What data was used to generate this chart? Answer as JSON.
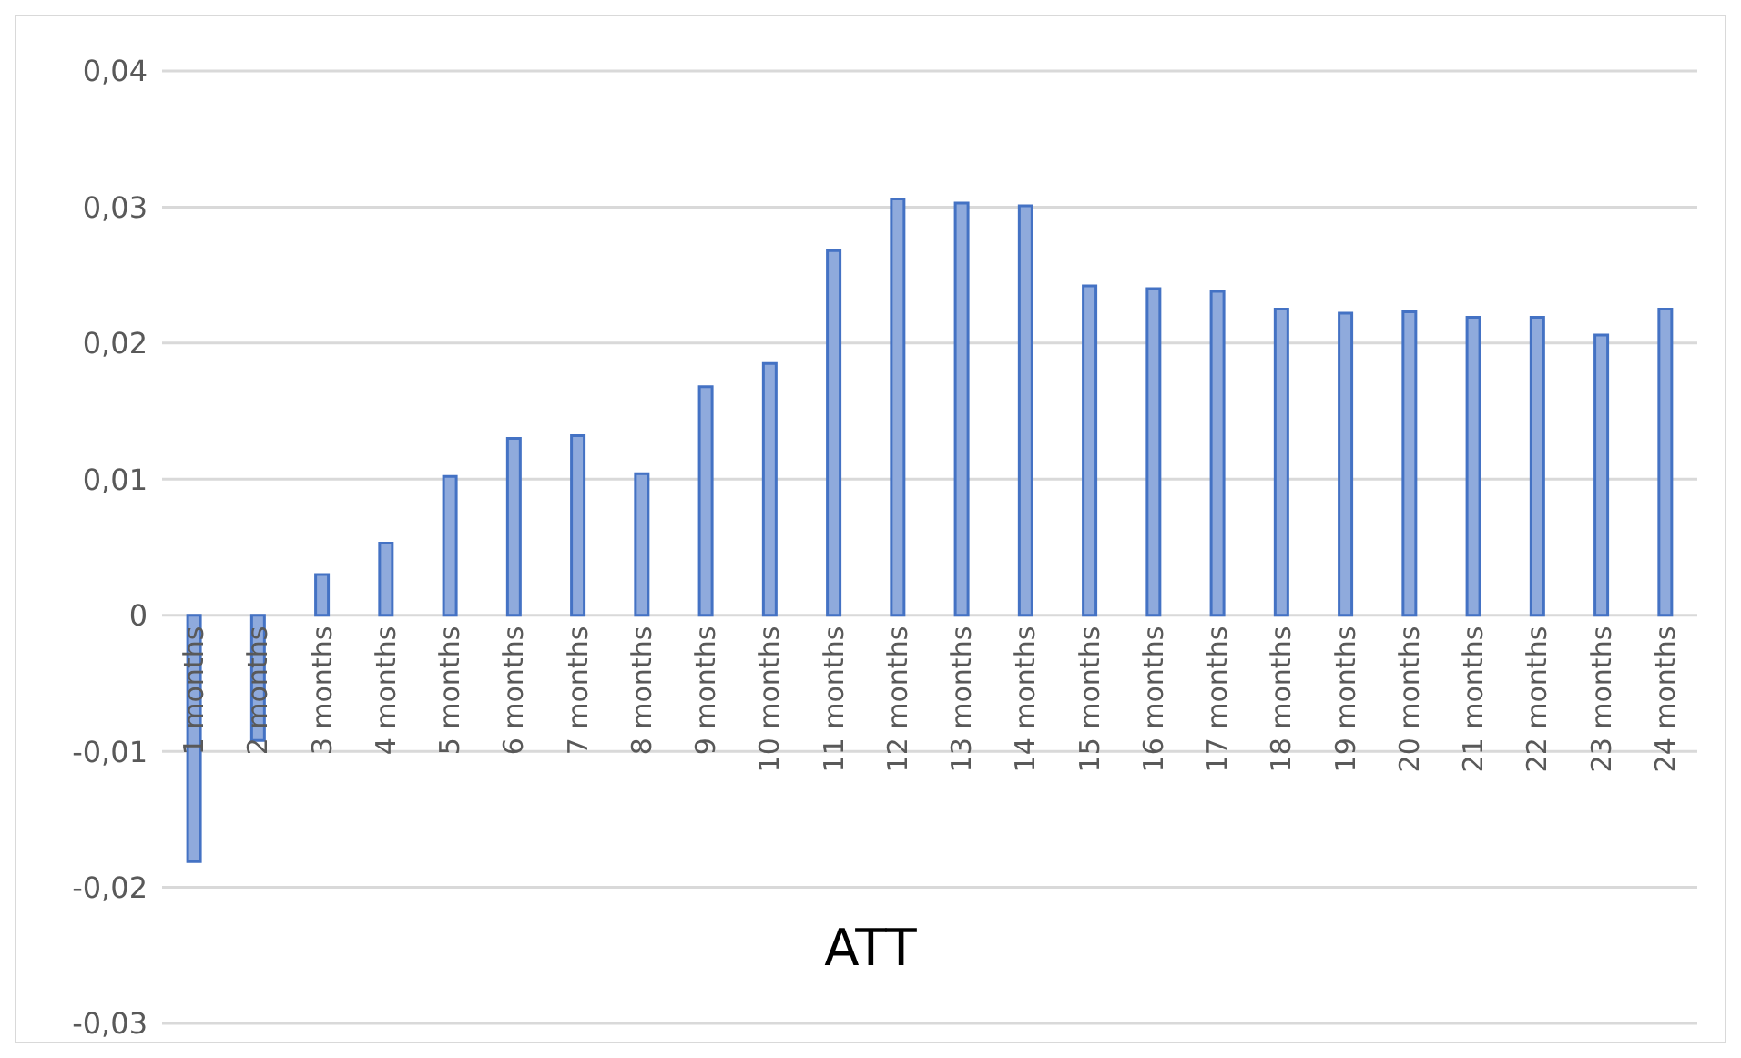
{
  "chart_data": {
    "type": "bar",
    "xlabel": "ATT",
    "categories": [
      "1 months",
      "2 months",
      "3 months",
      "4 months",
      "5 months",
      "6 months",
      "7 months",
      "8 months",
      "9 months",
      "10 months",
      "11 months",
      "12 months",
      "13 months",
      "14 months",
      "15 months",
      "16 months",
      "17 months",
      "18 months",
      "19 months",
      "20 months",
      "21 months",
      "22 months",
      "23 months",
      "24 months"
    ],
    "values": [
      -0.0181,
      -0.0092,
      0.003,
      0.0053,
      0.0102,
      0.013,
      0.0132,
      0.0104,
      0.0168,
      0.0185,
      0.0268,
      0.0306,
      0.0303,
      0.0301,
      0.0242,
      0.024,
      0.0238,
      0.0225,
      0.0222,
      0.0223,
      0.0219,
      0.0219,
      0.0206,
      0.0225
    ],
    "color": "#8faadc",
    "ylim": [
      -0.03,
      0.04
    ],
    "yticks": [
      {
        "value": -0.03,
        "label": "-0,03"
      },
      {
        "value": -0.02,
        "label": "-0,02"
      },
      {
        "value": -0.01,
        "label": "-0,01"
      },
      {
        "value": 0,
        "label": "0"
      },
      {
        "value": 0.01,
        "label": "0,01"
      },
      {
        "value": 0.02,
        "label": "0,02"
      },
      {
        "value": 0.03,
        "label": "0,03"
      },
      {
        "value": 0.04,
        "label": "0,04"
      }
    ],
    "grid": "y"
  }
}
